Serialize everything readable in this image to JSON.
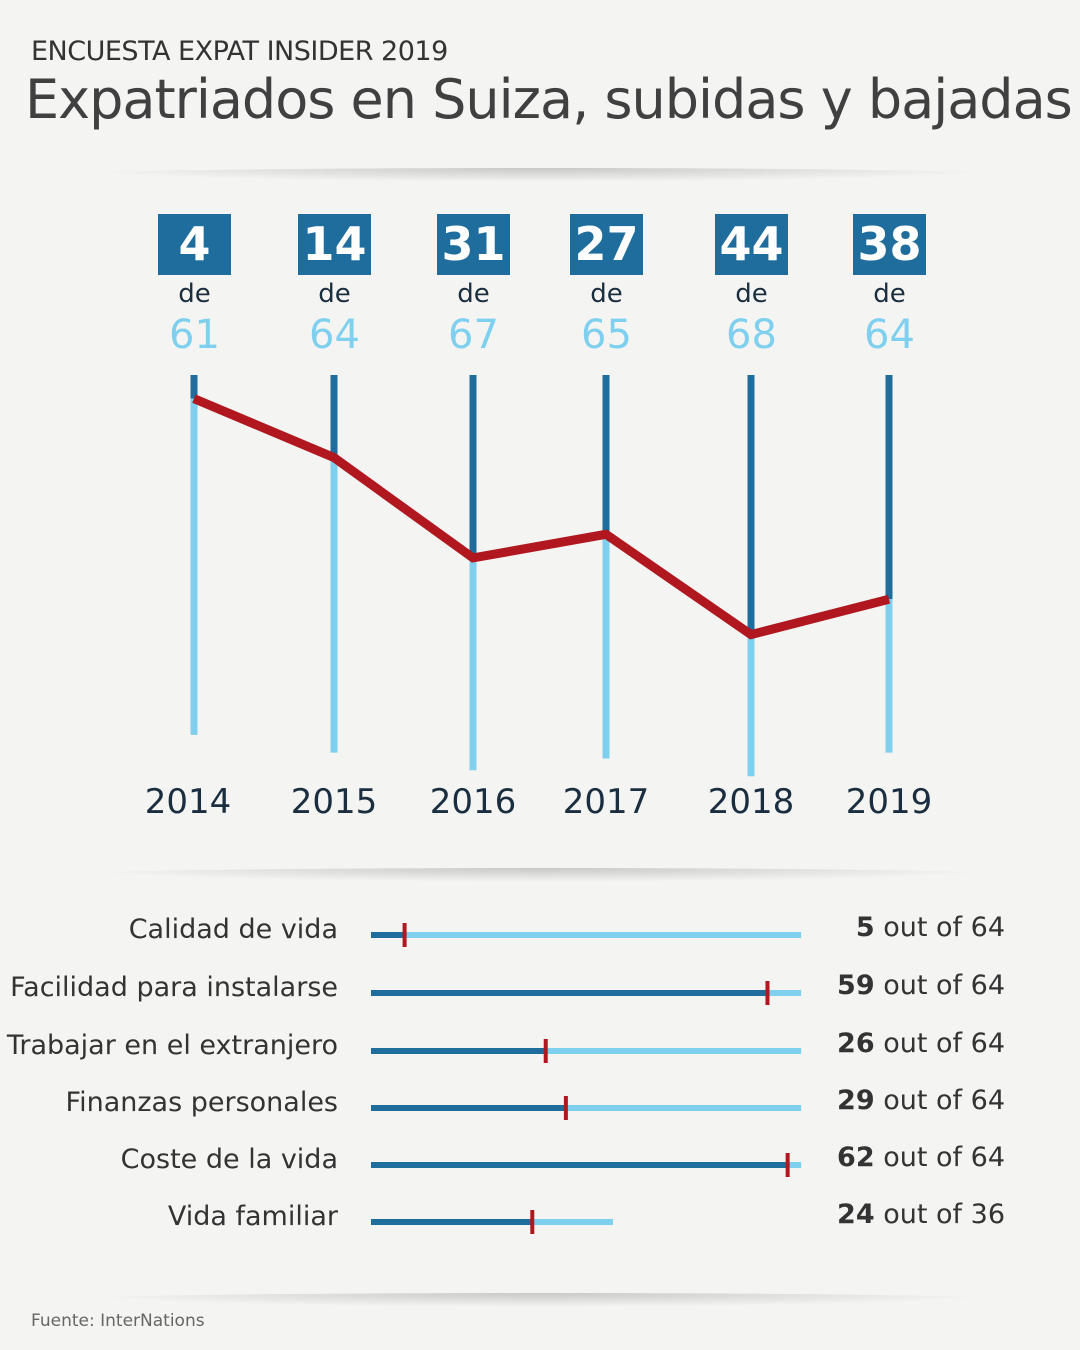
{
  "kicker": "ENCUESTA EXPAT INSIDER 2019",
  "title": "Expatriados en Suiza, subidas y bajadas",
  "source": "Fuente: InterNations",
  "colors": {
    "dark_blue": "#1f6d9d",
    "light_blue": "#7fd0ee",
    "red": "#b0171f",
    "background": "#f4f4f2"
  },
  "chart_data": [
    {
      "type": "line",
      "title": "Expatriados en Suiza, subidas y bajadas",
      "x": [
        "2014",
        "2015",
        "2016",
        "2017",
        "2018",
        "2019"
      ],
      "series": [
        {
          "name": "Rank",
          "values": [
            4,
            14,
            31,
            27,
            44,
            38
          ]
        }
      ],
      "totals": [
        61,
        64,
        67,
        65,
        68,
        64
      ],
      "connector": "de",
      "y_inverted": true
    },
    {
      "type": "bar",
      "categories": [
        "Calidad de vida",
        "Facilidad para instalarse",
        "Trabajar en el extranjero",
        "Finanzas personales",
        "Coste de la vida",
        "Vida familiar"
      ],
      "values": [
        5,
        59,
        26,
        29,
        62,
        24
      ],
      "totals": [
        64,
        64,
        64,
        64,
        64,
        36
      ],
      "label_suffix": "out of"
    }
  ]
}
